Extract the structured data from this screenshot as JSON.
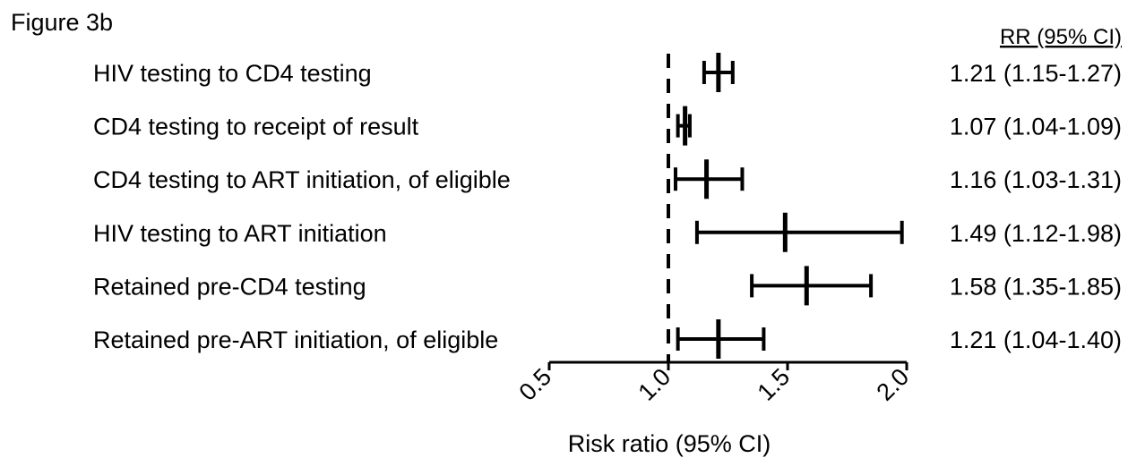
{
  "figure_label": "Figure 3b",
  "rr_header": "RR (95% CI)",
  "chart_data": {
    "type": "forest",
    "xlabel": "Risk ratio (95% CI)",
    "xlim": [
      0.5,
      2.0
    ],
    "xticks": [
      "0.5",
      "1.0",
      "1.5",
      "2.0"
    ],
    "reference_line": 1.0,
    "rows": [
      {
        "label": "HIV testing to CD4 testing",
        "rr": 1.21,
        "lo": 1.15,
        "hi": 1.27,
        "text": "1.21 (1.15-1.27)"
      },
      {
        "label": "CD4 testing to receipt of result",
        "rr": 1.07,
        "lo": 1.04,
        "hi": 1.09,
        "text": "1.07 (1.04-1.09)"
      },
      {
        "label": "CD4 testing to ART initiation, of eligible",
        "rr": 1.16,
        "lo": 1.03,
        "hi": 1.31,
        "text": "1.16 (1.03-1.31)"
      },
      {
        "label": "HIV testing to ART initiation",
        "rr": 1.49,
        "lo": 1.12,
        "hi": 1.98,
        "text": "1.49 (1.12-1.98)"
      },
      {
        "label": "Retained pre-CD4 testing",
        "rr": 1.58,
        "lo": 1.35,
        "hi": 1.85,
        "text": "1.58 (1.35-1.85)"
      },
      {
        "label": "Retained pre-ART initiation, of eligible",
        "rr": 1.21,
        "lo": 1.04,
        "hi": 1.4,
        "text": "1.21 (1.04-1.40)"
      }
    ]
  }
}
